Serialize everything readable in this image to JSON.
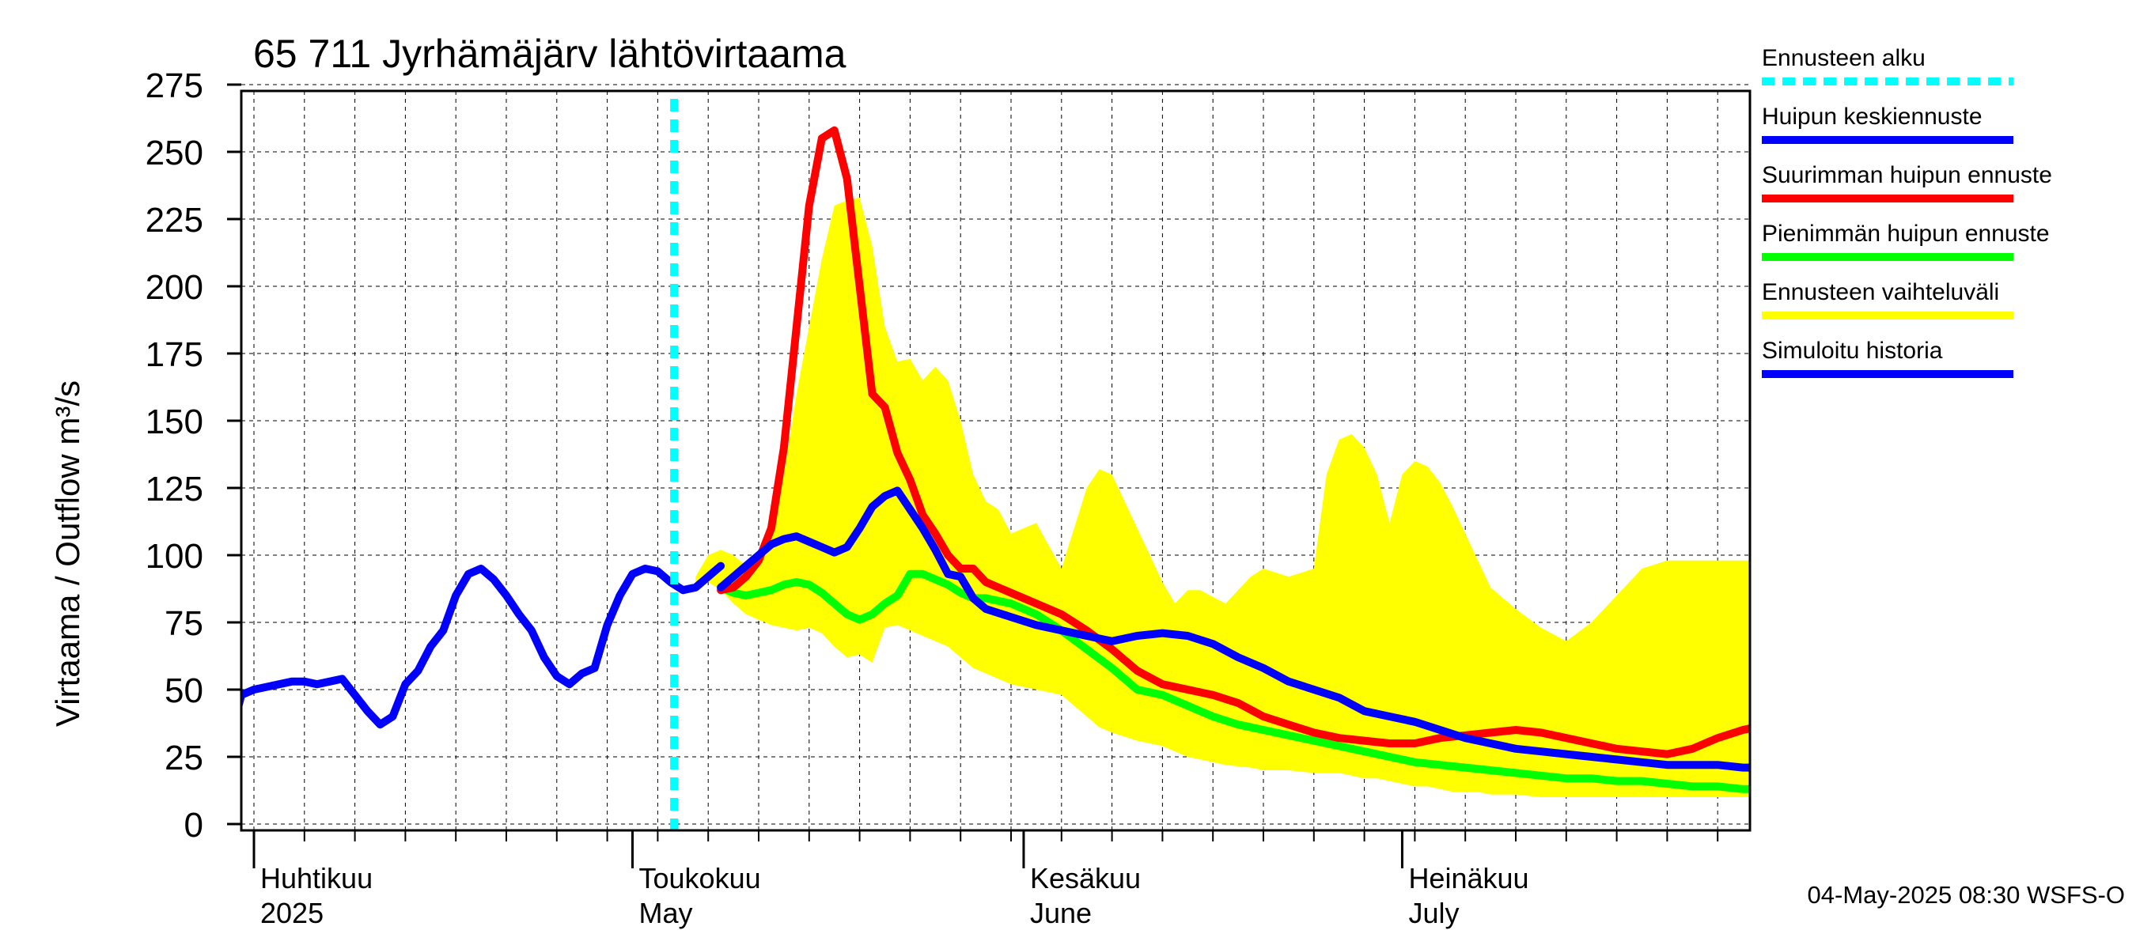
{
  "chart_data": {
    "type": "line",
    "title": "65 711 Jyrhämäjärv lähtövirtaama",
    "ylabel": "Virtaama / Outflow    m³/s",
    "ylim": [
      0,
      275
    ],
    "yticks": [
      0,
      25,
      50,
      75,
      100,
      125,
      150,
      175,
      200,
      225,
      250,
      275
    ],
    "x_range_days": [
      -3,
      119
    ],
    "grid": true,
    "legend_position": "right",
    "month_labels": [
      {
        "fi": "Huhtikuu",
        "en": "2025",
        "day": 0
      },
      {
        "fi": "Toukokuu",
        "en": "May",
        "day": 30
      },
      {
        "fi": "Kesäkuu",
        "en": "June",
        "day": 61
      },
      {
        "fi": "Heinäkuu",
        "en": "July",
        "day": 91
      }
    ],
    "forecast_start_day": 33.3,
    "footer": "04-May-2025 08:30 WSFS-O",
    "colors": {
      "forecast_start": "#00ffff",
      "mean_peak": "#0000ff",
      "max_peak": "#ff0000",
      "min_peak": "#00ff00",
      "range": "#ffff00",
      "history": "#0000ff"
    },
    "legend": [
      {
        "key": "forecast_start",
        "label": "Ennusteen alku",
        "dashed": true
      },
      {
        "key": "mean_peak",
        "label": "Huipun keskiennuste",
        "dashed": false
      },
      {
        "key": "max_peak",
        "label": "Suurimman huipun ennuste",
        "dashed": false
      },
      {
        "key": "min_peak",
        "label": "Pienimmän huipun ennuste",
        "dashed": false
      },
      {
        "key": "range",
        "label": "Ennusteen vaihteluväli",
        "dashed": false
      },
      {
        "key": "history",
        "label": "Simuloitu historia",
        "dashed": false
      }
    ],
    "series": [
      {
        "key": "range",
        "type": "area",
        "x": [
          35,
          36,
          37,
          38,
          39,
          40,
          41,
          42,
          43,
          44,
          45,
          46,
          47,
          48,
          49,
          50,
          51,
          52,
          53,
          54,
          55,
          56,
          57,
          58,
          59,
          60,
          62,
          64,
          66,
          67,
          68,
          70,
          72,
          73,
          74,
          75,
          77,
          79,
          80,
          82,
          84,
          85,
          86,
          87,
          88,
          89,
          90,
          91,
          92,
          93,
          94,
          95,
          96,
          97,
          98,
          100,
          102,
          104,
          106,
          108,
          110,
          112,
          114,
          116,
          118,
          119
        ],
        "upper": [
          92,
          100,
          102,
          100,
          96,
          100,
          112,
          130,
          160,
          185,
          210,
          230,
          232,
          233,
          215,
          185,
          172,
          173,
          165,
          170,
          165,
          150,
          130,
          120,
          117,
          108,
          112,
          95,
          125,
          132,
          130,
          110,
          90,
          82,
          87,
          87,
          82,
          92,
          95,
          92,
          95,
          130,
          143,
          145,
          140,
          130,
          112,
          130,
          135,
          133,
          127,
          118,
          108,
          98,
          88,
          80,
          73,
          68,
          75,
          85,
          95,
          98,
          98,
          98,
          98,
          98
        ],
        "lower": [
          90,
          90,
          87,
          82,
          78,
          76,
          74,
          73,
          72,
          73,
          71,
          66,
          62,
          63,
          60,
          73,
          74,
          72,
          70,
          68,
          66,
          62,
          58,
          56,
          54,
          52,
          50,
          48,
          40,
          36,
          34,
          31,
          29,
          27,
          25,
          24,
          22,
          21,
          20,
          20,
          19,
          19,
          19,
          18,
          17,
          17,
          16,
          15,
          14,
          14,
          13,
          12,
          12,
          12,
          11,
          11,
          10,
          10,
          10,
          10,
          10,
          10,
          10,
          10,
          10,
          10
        ]
      },
      {
        "key": "min_peak",
        "name": "Pienimmän huipun ennuste",
        "x": [
          37,
          38,
          39,
          40,
          41,
          42,
          43,
          44,
          45,
          46,
          47,
          48,
          49,
          50,
          51,
          52,
          53,
          54,
          55,
          56,
          57,
          58,
          60,
          62,
          64,
          66,
          68,
          70,
          72,
          74,
          76,
          78,
          80,
          82,
          84,
          86,
          88,
          90,
          92,
          94,
          96,
          98,
          100,
          102,
          104,
          106,
          108,
          110,
          112,
          114,
          116,
          118,
          119
        ],
        "y": [
          88,
          86,
          85,
          86,
          87,
          89,
          90,
          89,
          86,
          82,
          78,
          76,
          78,
          82,
          85,
          93,
          93,
          91,
          89,
          86,
          84,
          84,
          82,
          78,
          72,
          65,
          58,
          50,
          48,
          44,
          40,
          37,
          35,
          33,
          31,
          29,
          27,
          25,
          23,
          22,
          21,
          20,
          19,
          18,
          17,
          17,
          16,
          16,
          15,
          14,
          14,
          13,
          13
        ]
      },
      {
        "key": "max_peak",
        "name": "Suurimman huipun ennuste",
        "x": [
          37,
          38,
          39,
          40,
          41,
          42,
          43,
          44,
          45,
          46,
          47,
          48,
          49,
          50,
          51,
          52,
          53,
          54,
          55,
          56,
          57,
          58,
          59,
          60,
          61,
          62,
          64,
          66,
          68,
          70,
          72,
          74,
          76,
          78,
          80,
          82,
          84,
          86,
          88,
          90,
          92,
          94,
          96,
          98,
          100,
          102,
          104,
          106,
          108,
          110,
          112,
          114,
          116,
          118,
          119
        ],
        "y": [
          87,
          88,
          92,
          98,
          110,
          140,
          185,
          230,
          255,
          258,
          240,
          200,
          160,
          155,
          138,
          128,
          115,
          108,
          100,
          95,
          95,
          90,
          88,
          86,
          84,
          82,
          78,
          72,
          65,
          57,
          52,
          50,
          48,
          45,
          40,
          37,
          34,
          32,
          31,
          30,
          30,
          32,
          33,
          34,
          35,
          34,
          32,
          30,
          28,
          27,
          26,
          28,
          32,
          35,
          36
        ]
      },
      {
        "key": "mean_peak",
        "name": "Huipun keskiennuste",
        "x": [
          37,
          38,
          39,
          40,
          41,
          42,
          43,
          44,
          45,
          46,
          47,
          48,
          49,
          50,
          51,
          52,
          53,
          54,
          55,
          56,
          57,
          58,
          60,
          62,
          64,
          66,
          68,
          70,
          72,
          74,
          76,
          78,
          80,
          82,
          84,
          86,
          88,
          90,
          92,
          94,
          96,
          98,
          100,
          102,
          104,
          106,
          108,
          110,
          112,
          114,
          116,
          118,
          119
        ],
        "y": [
          88,
          92,
          96,
          100,
          104,
          106,
          107,
          105,
          103,
          101,
          103,
          110,
          118,
          122,
          124,
          117,
          110,
          102,
          93,
          92,
          84,
          80,
          77,
          74,
          72,
          70,
          68,
          70,
          71,
          70,
          67,
          62,
          58,
          53,
          50,
          47,
          42,
          40,
          38,
          35,
          32,
          30,
          28,
          27,
          26,
          25,
          24,
          23,
          22,
          22,
          22,
          21,
          21
        ]
      },
      {
        "key": "history",
        "name": "Simuloitu historia",
        "x": [
          -3,
          -2,
          -1,
          0,
          1,
          2,
          3,
          4,
          5,
          6,
          7,
          8,
          9,
          10,
          11,
          12,
          13,
          14,
          15,
          16,
          17,
          18,
          19,
          20,
          21,
          22,
          23,
          24,
          25,
          26,
          27,
          28,
          29,
          30,
          31,
          32,
          33,
          34,
          35,
          36,
          37
        ],
        "y": [
          13,
          30,
          48,
          50,
          51,
          52,
          53,
          53,
          52,
          53,
          54,
          48,
          42,
          37,
          40,
          52,
          57,
          66,
          72,
          85,
          93,
          95,
          91,
          85,
          78,
          72,
          62,
          55,
          52,
          56,
          58,
          74,
          85,
          93,
          95,
          94,
          90,
          87,
          88,
          92,
          96
        ]
      }
    ]
  }
}
